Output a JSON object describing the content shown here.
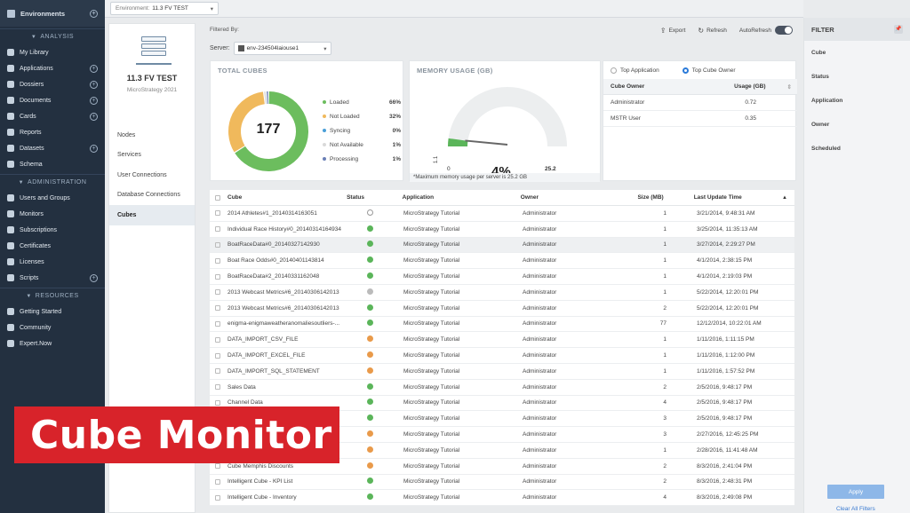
{
  "sidebar": {
    "top": "Environments",
    "sections": [
      {
        "title": "ANALYSIS",
        "items": [
          {
            "label": "My Library",
            "icon": "library-icon",
            "plus": false
          },
          {
            "label": "Applications",
            "icon": "applications-icon",
            "plus": true
          },
          {
            "label": "Dossiers",
            "icon": "dossier-icon",
            "plus": true
          },
          {
            "label": "Documents",
            "icon": "document-icon",
            "plus": true
          },
          {
            "label": "Cards",
            "icon": "card-icon",
            "plus": true
          },
          {
            "label": "Reports",
            "icon": "report-icon",
            "plus": false
          },
          {
            "label": "Datasets",
            "icon": "dataset-icon",
            "plus": true
          },
          {
            "label": "Schema",
            "icon": "schema-icon",
            "plus": false
          }
        ]
      },
      {
        "title": "ADMINISTRATION",
        "items": [
          {
            "label": "Users and Groups",
            "icon": "users-icon",
            "plus": false
          },
          {
            "label": "Monitors",
            "icon": "monitor-icon",
            "plus": false
          },
          {
            "label": "Subscriptions",
            "icon": "subscription-icon",
            "plus": false
          },
          {
            "label": "Certificates",
            "icon": "certificate-icon",
            "plus": false
          },
          {
            "label": "Licenses",
            "icon": "license-icon",
            "plus": false
          },
          {
            "label": "Scripts",
            "icon": "script-icon",
            "plus": true
          }
        ]
      },
      {
        "title": "RESOURCES",
        "items": [
          {
            "label": "Getting Started",
            "icon": "rocket-icon",
            "plus": false
          },
          {
            "label": "Community",
            "icon": "community-icon",
            "plus": false
          },
          {
            "label": "Expert.Now",
            "icon": "expert-icon",
            "plus": false
          }
        ]
      }
    ]
  },
  "topbar": {
    "env_prefix": "Environment:",
    "env_value": "11.3 FV TEST"
  },
  "env_panel": {
    "title": "11.3 FV TEST",
    "subtitle": "MicroStrategy 2021",
    "nav": [
      "Nodes",
      "Services",
      "User Connections",
      "Database Connections",
      "Cubes"
    ],
    "active": "Cubes"
  },
  "header": {
    "filtered_by": "Filtered By:",
    "server_label": "Server:",
    "server_value": "env-234504laiouse1",
    "export": "Export",
    "refresh": "Refresh",
    "autorefresh": "AutoRefresh"
  },
  "total_cubes": {
    "title": "TOTAL CUBES",
    "total": "177",
    "legend": [
      {
        "label": "Loaded",
        "pct": "66%",
        "value": 66,
        "color": "#6cbd5e"
      },
      {
        "label": "Not Loaded",
        "pct": "32%",
        "value": 32,
        "color": "#f0b95c"
      },
      {
        "label": "Syncing",
        "pct": "0%",
        "value": 0,
        "color": "#4a9fd8"
      },
      {
        "label": "Not Available",
        "pct": "1%",
        "value": 1,
        "color": "#d9d9d9"
      },
      {
        "label": "Processing",
        "pct": "1%",
        "value": 1,
        "color": "#6a7fb6"
      }
    ]
  },
  "memory": {
    "title": "MEMORY USAGE (GB)",
    "min": "0",
    "max": "25.2",
    "pct": "4%",
    "value": 1.1,
    "value_label": "1.1",
    "note": "*Maximum memory usage per server is 25.2 GB"
  },
  "owners": {
    "radio1": "Top Application",
    "radio2": "Top Cube Owner",
    "h1": "Cube Owner",
    "h2": "Usage (GB)",
    "rows": [
      {
        "owner": "Administrator",
        "usage": "0.72"
      },
      {
        "owner": "MSTR User",
        "usage": "0.35"
      }
    ]
  },
  "table": {
    "headers": [
      "Cube",
      "Status",
      "Application",
      "Owner",
      "Size (MB)",
      "Last Update Time"
    ],
    "rows": [
      {
        "cube": "2014 Athletes#1_20140314163051",
        "status": "pr",
        "app": "MicroStrategy Tutorial",
        "owner": "Administrator",
        "size": "1",
        "updated": "3/21/2014, 9:48:31 AM"
      },
      {
        "cube": "Individual Race History#0_20140314164934",
        "status": "ok",
        "app": "MicroStrategy Tutorial",
        "owner": "Administrator",
        "size": "1",
        "updated": "3/25/2014, 11:35:13 AM"
      },
      {
        "cube": "BoatRaceData#0_20140327142930",
        "status": "ok",
        "app": "MicroStrategy Tutorial",
        "owner": "Administrator",
        "size": "1",
        "updated": "3/27/2014, 2:29:27 PM"
      },
      {
        "cube": "Boat Race Odds#0_20140401143814",
        "status": "ok",
        "app": "MicroStrategy Tutorial",
        "owner": "Administrator",
        "size": "1",
        "updated": "4/1/2014, 2:38:15 PM"
      },
      {
        "cube": "BoatRaceData#2_20140331162048",
        "status": "ok",
        "app": "MicroStrategy Tutorial",
        "owner": "Administrator",
        "size": "1",
        "updated": "4/1/2014, 2:19:03 PM"
      },
      {
        "cube": "2013 Webcast Metrics#6_20140306142013",
        "status": "gy",
        "app": "MicroStrategy Tutorial",
        "owner": "Administrator",
        "size": "1",
        "updated": "5/22/2014, 12:20:01 PM"
      },
      {
        "cube": "2013 Webcast Metrics#6_20140306142013",
        "status": "ok",
        "app": "MicroStrategy Tutorial",
        "owner": "Administrator",
        "size": "2",
        "updated": "5/22/2014, 12:20:01 PM"
      },
      {
        "cube": "enigma-enigmaweatheranomaliesoutliers-...",
        "status": "ok",
        "app": "MicroStrategy Tutorial",
        "owner": "Administrator",
        "size": "77",
        "updated": "12/12/2014, 10:22:01 AM"
      },
      {
        "cube": "DATA_IMPORT_CSV_FILE",
        "status": "na",
        "app": "MicroStrategy Tutorial",
        "owner": "Administrator",
        "size": "1",
        "updated": "1/11/2016, 1:11:15 PM"
      },
      {
        "cube": "DATA_IMPORT_EXCEL_FILE",
        "status": "na",
        "app": "MicroStrategy Tutorial",
        "owner": "Administrator",
        "size": "1",
        "updated": "1/11/2016, 1:12:00 PM"
      },
      {
        "cube": "DATA_IMPORT_SQL_STATEMENT",
        "status": "na",
        "app": "MicroStrategy Tutorial",
        "owner": "Administrator",
        "size": "1",
        "updated": "1/11/2016, 1:57:52 PM"
      },
      {
        "cube": "Sales Data",
        "status": "ok",
        "app": "MicroStrategy Tutorial",
        "owner": "Administrator",
        "size": "2",
        "updated": "2/5/2016, 9:48:17 PM"
      },
      {
        "cube": "Channel Data",
        "status": "ok",
        "app": "MicroStrategy Tutorial",
        "owner": "Administrator",
        "size": "4",
        "updated": "2/5/2016, 9:48:17 PM"
      },
      {
        "cube": "",
        "status": "ok",
        "app": "MicroStrategy Tutorial",
        "owner": "Administrator",
        "size": "3",
        "updated": "2/5/2016, 9:48:17 PM"
      },
      {
        "cube": "",
        "status": "na",
        "app": "MicroStrategy Tutorial",
        "owner": "Administrator",
        "size": "3",
        "updated": "2/27/2016, 12:45:25 PM"
      },
      {
        "cube": "",
        "status": "na",
        "app": "MicroStrategy Tutorial",
        "owner": "Administrator",
        "size": "1",
        "updated": "2/28/2016, 11:41:48 AM"
      },
      {
        "cube": "Cube Memphis Discounts",
        "status": "na",
        "app": "MicroStrategy Tutorial",
        "owner": "Administrator",
        "size": "2",
        "updated": "8/3/2016, 2:41:04 PM"
      },
      {
        "cube": "Intelligent Cube - KPI List",
        "status": "ok",
        "app": "MicroStrategy Tutorial",
        "owner": "Administrator",
        "size": "2",
        "updated": "8/3/2016, 2:48:31 PM"
      },
      {
        "cube": "Intelligent Cube - Inventory",
        "status": "ok",
        "app": "MicroStrategy Tutorial",
        "owner": "Administrator",
        "size": "4",
        "updated": "8/3/2016, 2:49:08 PM"
      }
    ]
  },
  "filter": {
    "title": "FILTER",
    "items": [
      "Cube",
      "Status",
      "Application",
      "Owner",
      "Scheduled"
    ],
    "apply": "Apply",
    "clear": "Clear All Filters"
  },
  "banner": {
    "text": "Cube Monitor"
  }
}
